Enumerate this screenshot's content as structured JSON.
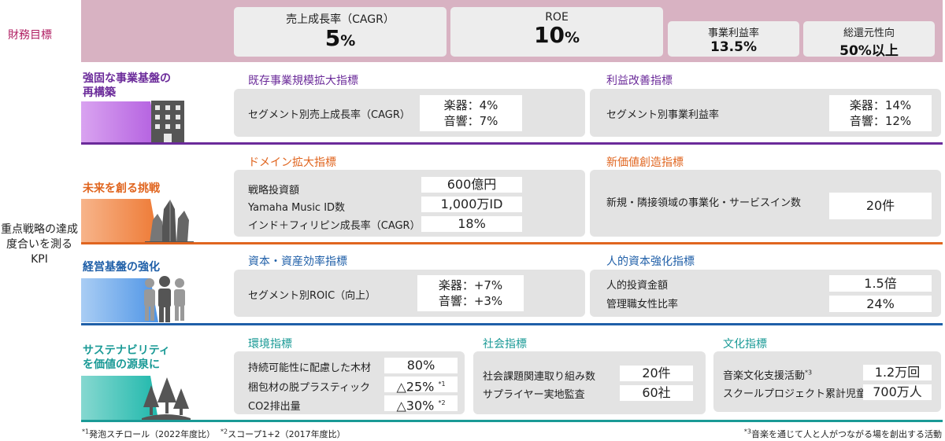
{
  "colors": {
    "financial_band": "#d8b2c2",
    "financial_label": "#b01e62",
    "row1": "#6b2b9a",
    "row2": "#e0651f",
    "row3": "#1f5fa8",
    "row4": "#1a9a96"
  },
  "financial": {
    "label": "財務目標",
    "cagr": {
      "label": "売上成長率（CAGR）",
      "value": "5",
      "unit": "%"
    },
    "roe": {
      "label": "ROE",
      "value": "10",
      "unit": "%"
    },
    "margin": {
      "label": "事業利益率",
      "value": "13.5%"
    },
    "payout": {
      "label": "総還元性向",
      "value": "50%以上"
    }
  },
  "kpi_label": "重点戦略の達成度合いを測るKPI",
  "rows": {
    "r1": {
      "title": "強固な事業基盤の再構築",
      "icon": "building-icon",
      "left": {
        "category": "既存事業規模拡大指標",
        "items": [
          {
            "label": "セグメント別売上成長率（CAGR）"
          }
        ],
        "values": [
          "楽器：4%",
          "音響：7%"
        ]
      },
      "right": {
        "category": "利益改善指標",
        "items": [
          {
            "label": "セグメント別事業利益率"
          }
        ],
        "values": [
          "楽器：14%",
          "音響：12%"
        ]
      }
    },
    "r2": {
      "title": "未来を創る挑戦",
      "icon": "crystal-icon",
      "left": {
        "category": "ドメイン拡大指標",
        "items": [
          {
            "label": "戦略投資額",
            "value": "600億円"
          },
          {
            "label": "Yamaha Music ID数",
            "value": "1,000万ID"
          },
          {
            "label": "インド＋フィリピン成長率（CAGR）",
            "value": "18%"
          }
        ]
      },
      "right": {
        "category": "新価値創造指標",
        "items": [
          {
            "label": "新規・隣接領域の事業化・サービスイン数",
            "value": "20件"
          }
        ]
      }
    },
    "r3": {
      "title": "経営基盤の強化",
      "icon": "people-icon",
      "left": {
        "category": "資本・資産効率指標",
        "items": [
          {
            "label": "セグメント別ROIC（向上）"
          }
        ],
        "values": [
          "楽器：+7%",
          "音響：+3%"
        ]
      },
      "right": {
        "category": "人的資本強化指標",
        "items": [
          {
            "label": "人的投資金額",
            "value": "1.5倍"
          },
          {
            "label": "管理職女性比率",
            "value": "24%"
          }
        ]
      }
    },
    "r4": {
      "title": "サステナビリティを価値の源泉に",
      "icon": "forest-icon",
      "env": {
        "category": "環境指標",
        "items": [
          {
            "label": "持続可能性に配慮した木材",
            "value": "80%"
          },
          {
            "label": "梱包材の脱プラスティック",
            "value": "△25%",
            "mark": "*1"
          },
          {
            "label": "CO2排出量",
            "value": "△30%",
            "mark": "*2"
          }
        ]
      },
      "social": {
        "category": "社会指標",
        "items": [
          {
            "label": "社会課題関連取り組み数",
            "value": "20件"
          },
          {
            "label": "サプライヤー実地監査",
            "value": "60社"
          }
        ]
      },
      "culture": {
        "category": "文化指標",
        "items": [
          {
            "label": "音楽文化支援活動",
            "mark": "*3",
            "value": "1.2万回"
          },
          {
            "label": "スクールプロジェクト累計児童数",
            "value": "700万人"
          }
        ]
      }
    }
  },
  "footnotes": {
    "n1": {
      "mark": "*1",
      "text": "発泡スチロール（2022年度比）"
    },
    "n2": {
      "mark": "*2",
      "text": "スコープ1+2（2017年度比）"
    },
    "n3": {
      "mark": "*3",
      "text": "音楽を通じて人と人がつながる場を創出する活動"
    }
  }
}
